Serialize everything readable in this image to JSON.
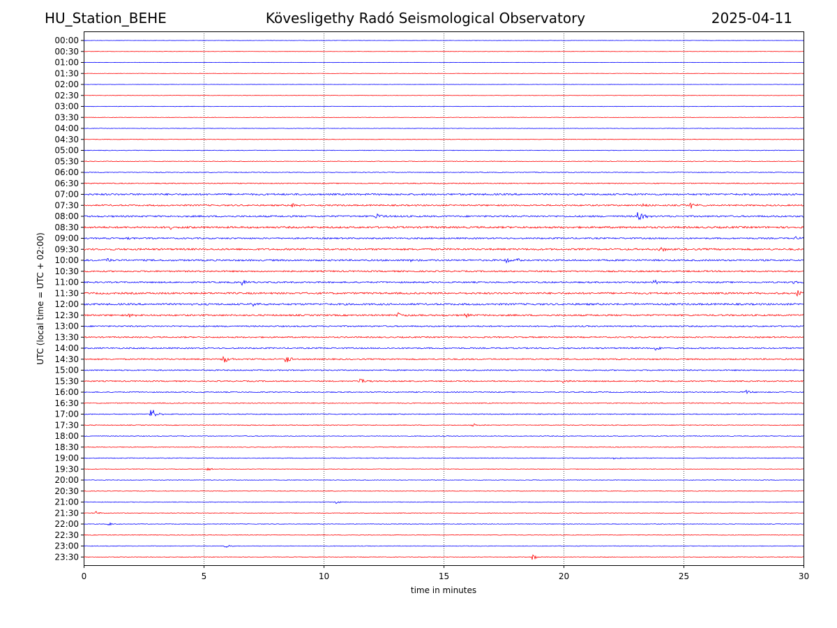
{
  "header": {
    "station": "HU_Station_BEHE",
    "observatory": "Kövesligethy Radó Seismological Observatory",
    "date": "2025-04-11"
  },
  "chart_data": {
    "type": "line",
    "xlabel": "time in minutes",
    "ylabel": "UTC (local time = UTC + 02:00)",
    "xlim": [
      0,
      30
    ],
    "x_ticks": [
      0,
      5,
      10,
      15,
      20,
      25,
      30
    ],
    "vertical_grid_minutes": [
      5,
      10,
      15,
      20,
      25
    ],
    "grid": "dotted vertical lines",
    "row_labels": [
      "00:00",
      "00:30",
      "01:00",
      "01:30",
      "02:00",
      "02:30",
      "03:00",
      "03:30",
      "04:00",
      "04:30",
      "05:00",
      "05:30",
      "06:00",
      "06:30",
      "07:00",
      "07:30",
      "08:00",
      "08:30",
      "09:00",
      "09:30",
      "10:00",
      "10:30",
      "11:00",
      "11:30",
      "12:00",
      "12:30",
      "13:00",
      "13:30",
      "14:00",
      "14:30",
      "15:00",
      "15:30",
      "16:00",
      "16:30",
      "17:00",
      "17:30",
      "18:00",
      "18:30",
      "19:00",
      "19:30",
      "20:00",
      "20:30",
      "21:00",
      "21:30",
      "22:00",
      "22:30",
      "23:00",
      "23:30"
    ],
    "trace_colors": {
      "hour": "#0000ff",
      "half_hour": "#ff0000"
    },
    "trace_noise": [
      0.2,
      0.2,
      0.2,
      0.2,
      0.2,
      0.25,
      0.3,
      0.3,
      0.3,
      0.35,
      0.4,
      0.45,
      0.5,
      0.6,
      1.2,
      1.0,
      1.1,
      1.3,
      1.0,
      1.2,
      1.1,
      1.0,
      1.0,
      1.2,
      1.2,
      1.1,
      0.9,
      0.9,
      0.9,
      0.9,
      0.8,
      0.8,
      0.7,
      0.6,
      0.6,
      0.5,
      0.5,
      0.5,
      0.5,
      0.4,
      0.4,
      0.4,
      0.4,
      0.4,
      0.4,
      0.4,
      0.4,
      0.4
    ],
    "events": [
      {
        "row": "07:30",
        "minute": 8.7,
        "amplitude": 4
      },
      {
        "row": "07:30",
        "minute": 23.3,
        "amplitude": 4
      },
      {
        "row": "07:30",
        "minute": 25.3,
        "amplitude": 5
      },
      {
        "row": "08:00",
        "minute": 12.2,
        "amplitude": 5
      },
      {
        "row": "08:00",
        "minute": 23.1,
        "amplitude": 10
      },
      {
        "row": "08:30",
        "minute": 3.5,
        "amplitude": 4
      },
      {
        "row": "09:00",
        "minute": 1.8,
        "amplitude": 3
      },
      {
        "row": "09:00",
        "minute": 29.6,
        "amplitude": 3
      },
      {
        "row": "09:30",
        "minute": 24.0,
        "amplitude": 4
      },
      {
        "row": "10:00",
        "minute": 1.0,
        "amplitude": 4
      },
      {
        "row": "10:00",
        "minute": 13.6,
        "amplitude": 3
      },
      {
        "row": "10:00",
        "minute": 17.6,
        "amplitude": 4
      },
      {
        "row": "10:00",
        "minute": 18.0,
        "amplitude": 3
      },
      {
        "row": "11:00",
        "minute": 6.6,
        "amplitude": 5
      },
      {
        "row": "11:00",
        "minute": 23.7,
        "amplitude": 5
      },
      {
        "row": "11:00",
        "minute": 29.6,
        "amplitude": 3
      },
      {
        "row": "11:30",
        "minute": 28.2,
        "amplitude": 4
      },
      {
        "row": "11:30",
        "minute": 29.7,
        "amplitude": 8
      },
      {
        "row": "12:00",
        "minute": 7.0,
        "amplitude": 3
      },
      {
        "row": "12:30",
        "minute": 1.9,
        "amplitude": 4
      },
      {
        "row": "12:30",
        "minute": 13.1,
        "amplitude": 5
      },
      {
        "row": "12:30",
        "minute": 15.9,
        "amplitude": 3
      },
      {
        "row": "14:00",
        "minute": 23.8,
        "amplitude": 4
      },
      {
        "row": "14:30",
        "minute": 5.8,
        "amplitude": 8
      },
      {
        "row": "14:30",
        "minute": 8.4,
        "amplitude": 8
      },
      {
        "row": "15:30",
        "minute": 11.5,
        "amplitude": 7
      },
      {
        "row": "15:30",
        "minute": 19.9,
        "amplitude": 4
      },
      {
        "row": "16:00",
        "minute": 27.6,
        "amplitude": 3
      },
      {
        "row": "17:00",
        "minute": 2.8,
        "amplitude": 11
      },
      {
        "row": "17:30",
        "minute": 16.2,
        "amplitude": 3
      },
      {
        "row": "19:00",
        "minute": 22.1,
        "amplitude": 3
      },
      {
        "row": "19:30",
        "minute": 5.1,
        "amplitude": 3
      },
      {
        "row": "21:00",
        "minute": 10.5,
        "amplitude": 3
      },
      {
        "row": "21:30",
        "minute": 0.5,
        "amplitude": 3
      },
      {
        "row": "22:00",
        "minute": 1.0,
        "amplitude": 3
      },
      {
        "row": "23:00",
        "minute": 5.9,
        "amplitude": 3
      },
      {
        "row": "23:30",
        "minute": 18.7,
        "amplitude": 4
      }
    ]
  }
}
